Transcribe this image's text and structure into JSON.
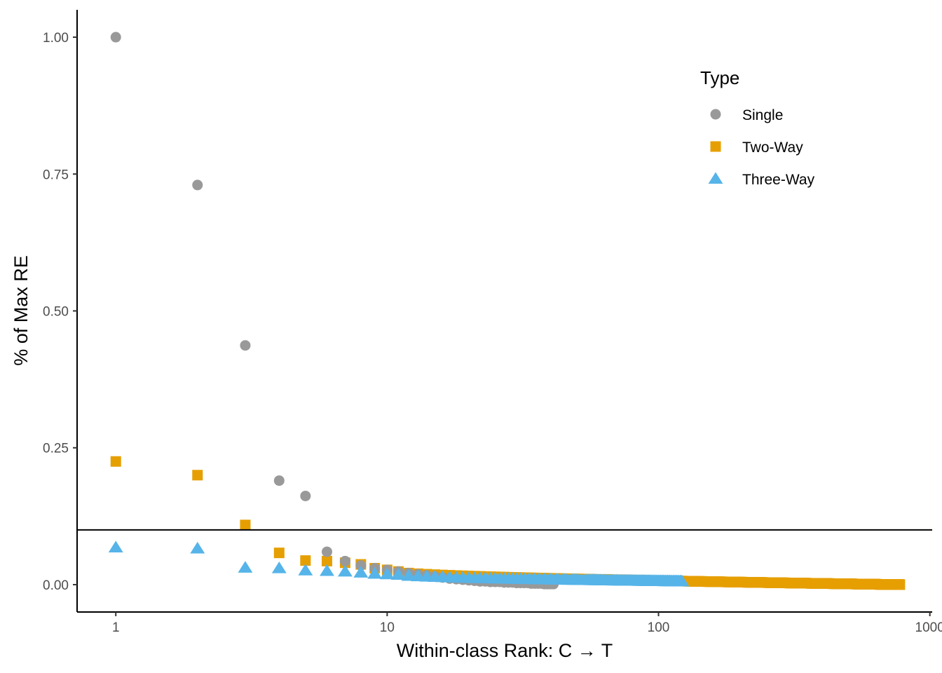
{
  "chart_data": {
    "type": "scatter",
    "title": "",
    "xlabel": "Within-class Rank: C → T",
    "ylabel": "% of Max RE",
    "x_scale": "log10",
    "xlim": [
      0.72,
      1020
    ],
    "ylim": [
      -0.05,
      1.05
    ],
    "x_ticks": [
      1,
      10,
      100,
      1000
    ],
    "x_tick_labels": [
      "1",
      "10",
      "100",
      "1000"
    ],
    "y_ticks": [
      0,
      0.25,
      0.5,
      0.75,
      1.0
    ],
    "y_tick_labels": [
      "0.00",
      "0.25",
      "0.50",
      "0.75",
      "1.00"
    ],
    "grid": false,
    "reference_line_y": 0.1,
    "legend": {
      "title": "Type",
      "position": "top-right"
    },
    "series": [
      {
        "name": "Single",
        "shape": "circle",
        "color": "#999999",
        "points": [
          [
            1,
            1.0
          ],
          [
            2,
            0.73
          ],
          [
            3,
            0.437
          ],
          [
            4,
            0.19
          ],
          [
            5,
            0.162
          ],
          [
            6,
            0.06
          ],
          [
            7,
            0.043
          ],
          [
            8,
            0.035
          ],
          [
            9,
            0.03
          ],
          [
            10,
            0.027
          ],
          [
            11,
            0.024
          ],
          [
            12,
            0.021
          ],
          [
            13,
            0.019
          ],
          [
            14,
            0.017
          ],
          [
            15,
            0.015
          ],
          [
            16,
            0.013
          ],
          [
            17,
            0.011
          ],
          [
            18,
            0.01
          ],
          [
            19,
            0.009
          ],
          [
            20,
            0.008
          ],
          [
            21,
            0.007
          ],
          [
            22,
            0.006
          ],
          [
            23,
            0.006
          ],
          [
            24,
            0.005
          ],
          [
            25,
            0.005
          ],
          [
            26,
            0.005
          ],
          [
            27,
            0.004
          ],
          [
            28,
            0.004
          ],
          [
            29,
            0.004
          ],
          [
            30,
            0.003
          ],
          [
            31,
            0.003
          ],
          [
            32,
            0.003
          ],
          [
            33,
            0.003
          ],
          [
            34,
            0.002
          ],
          [
            35,
            0.002
          ],
          [
            36,
            0.002
          ],
          [
            37,
            0.002
          ],
          [
            38,
            0.001
          ],
          [
            39,
            0.001
          ],
          [
            40,
            0.001
          ],
          [
            41,
            0.001
          ]
        ]
      },
      {
        "name": "Two-Way",
        "shape": "square",
        "color": "#E69F00",
        "rule": {
          "n": 775,
          "start": 11,
          "y_start": 0.024,
          "y_end": 0.0
        },
        "points": [
          [
            1,
            0.225
          ],
          [
            2,
            0.2
          ],
          [
            3,
            0.109
          ],
          [
            4,
            0.058
          ],
          [
            5,
            0.044
          ],
          [
            6,
            0.043
          ],
          [
            7,
            0.04
          ],
          [
            8,
            0.037
          ],
          [
            9,
            0.03
          ],
          [
            10,
            0.027
          ]
        ]
      },
      {
        "name": "Three-Way",
        "shape": "triangle",
        "color": "#56B4E9",
        "rule": {
          "n": 122,
          "start": 11,
          "y_start": 0.018,
          "y_end": 0.006
        },
        "points": [
          [
            1,
            0.068
          ],
          [
            2,
            0.066
          ],
          [
            3,
            0.031
          ],
          [
            4,
            0.03
          ],
          [
            5,
            0.026
          ],
          [
            6,
            0.025
          ],
          [
            7,
            0.024
          ],
          [
            8,
            0.022
          ],
          [
            9,
            0.02
          ],
          [
            10,
            0.019
          ]
        ]
      }
    ]
  }
}
